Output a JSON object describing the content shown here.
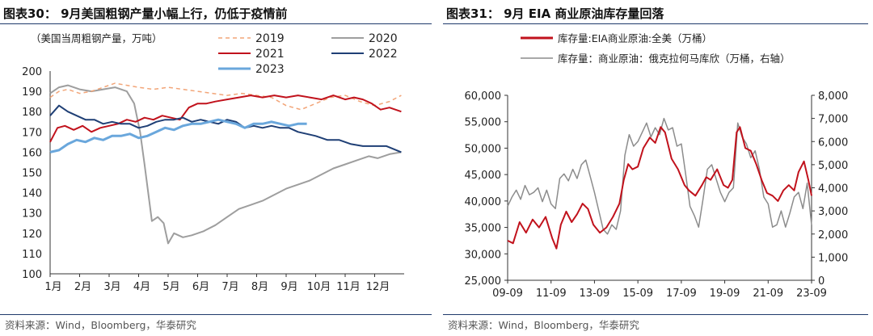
{
  "left": {
    "title": "图表30： 9月美国粗钢产量小幅上行，仍低于疫情前",
    "source": "资料来源：Wind，Bloomberg，华泰研究",
    "chart_data": {
      "type": "line",
      "title": "9月美国粗钢产量小幅上行，仍低于疫情前",
      "ylabel": "（美国当周粗钢产量，万吨）",
      "ylim": [
        100,
        200
      ],
      "yticks": [
        100,
        110,
        120,
        130,
        140,
        150,
        160,
        170,
        180,
        190,
        200
      ],
      "xlim": [
        1,
        13
      ],
      "categories": [
        "1月",
        "2月",
        "3月",
        "4月",
        "5月",
        "6月",
        "7月",
        "8月",
        "9月",
        "10月",
        "11月",
        "12月"
      ],
      "series": [
        {
          "name": "2019",
          "color": "#f2a578",
          "dash": "5,4",
          "width": 1.5,
          "x": [
            1,
            1.3,
            1.6,
            2,
            2.4,
            2.8,
            3.2,
            3.6,
            4,
            4.5,
            5,
            5.5,
            6,
            6.5,
            7,
            7.5,
            8,
            8.5,
            9,
            9.5,
            10,
            10.5,
            11,
            11.5,
            12,
            12.5,
            12.9
          ],
          "y": [
            187,
            190,
            191,
            189,
            190,
            192,
            194,
            193,
            192,
            191,
            192,
            191,
            190,
            189,
            188,
            189,
            188,
            187,
            183,
            181,
            184,
            187,
            188,
            185,
            183,
            185,
            188
          ]
        },
        {
          "name": "2020",
          "color": "#9e9e9e",
          "dash": "",
          "width": 2,
          "x": [
            1,
            1.3,
            1.6,
            2,
            2.4,
            2.8,
            3.2,
            3.6,
            3.85,
            4.05,
            4.2,
            4.45,
            4.65,
            4.85,
            5,
            5.2,
            5.5,
            5.8,
            6.2,
            6.6,
            7,
            7.4,
            7.8,
            8.2,
            8.6,
            9,
            9.4,
            9.8,
            10.2,
            10.6,
            11,
            11.4,
            11.8,
            12.1,
            12.5,
            12.9
          ],
          "y": [
            189,
            192,
            193,
            191,
            190,
            191,
            192,
            190,
            184,
            170,
            154,
            126,
            128,
            125,
            115,
            120,
            118,
            119,
            121,
            124,
            128,
            132,
            134,
            136,
            139,
            142,
            144,
            146,
            149,
            152,
            154,
            156,
            158,
            157,
            159,
            160
          ]
        },
        {
          "name": "2021",
          "color": "#c1121c",
          "dash": "",
          "width": 2,
          "x": [
            1,
            1.25,
            1.5,
            1.8,
            2.1,
            2.4,
            2.7,
            3,
            3.3,
            3.6,
            3.9,
            4.2,
            4.5,
            4.8,
            5.1,
            5.4,
            5.7,
            6,
            6.3,
            6.6,
            7,
            7.4,
            7.8,
            8.2,
            8.6,
            9,
            9.4,
            9.8,
            10.2,
            10.6,
            11,
            11.3,
            11.6,
            11.9,
            12.2,
            12.5,
            12.9
          ],
          "y": [
            165,
            172,
            173,
            171,
            173,
            170,
            172,
            173,
            174,
            176,
            175,
            177,
            176,
            178,
            177,
            176,
            182,
            184,
            184,
            185,
            186,
            187,
            188,
            187,
            188,
            187,
            188,
            187,
            186,
            188,
            186,
            187,
            186,
            184,
            181,
            182,
            180
          ]
        },
        {
          "name": "2022",
          "color": "#1f3f75",
          "dash": "",
          "width": 2,
          "x": [
            1,
            1.3,
            1.6,
            1.9,
            2.2,
            2.5,
            2.8,
            3.1,
            3.4,
            3.7,
            4,
            4.3,
            4.6,
            4.9,
            5.2,
            5.5,
            5.8,
            6.1,
            6.4,
            6.7,
            7,
            7.3,
            7.6,
            7.9,
            8.2,
            8.5,
            8.8,
            9.1,
            9.4,
            9.7,
            10,
            10.4,
            10.8,
            11.2,
            11.6,
            12,
            12.4,
            12.9
          ],
          "y": [
            178,
            183,
            180,
            178,
            176,
            176,
            174,
            175,
            174,
            174,
            172,
            173,
            175,
            176,
            176,
            177,
            175,
            176,
            175,
            174,
            176,
            175,
            172,
            173,
            172,
            173,
            172,
            172,
            170,
            169,
            168,
            166,
            166,
            164,
            163,
            163,
            163,
            160
          ]
        },
        {
          "name": "2023",
          "color": "#6aa7dc",
          "dash": "",
          "width": 3,
          "x": [
            1,
            1.3,
            1.6,
            1.9,
            2.2,
            2.5,
            2.8,
            3.1,
            3.4,
            3.7,
            4,
            4.3,
            4.6,
            4.9,
            5.2,
            5.5,
            5.8,
            6.1,
            6.4,
            6.7,
            7,
            7.3,
            7.6,
            7.9,
            8.2,
            8.5,
            8.8,
            9.1,
            9.4,
            9.7
          ],
          "y": [
            160,
            161,
            164,
            166,
            165,
            167,
            166,
            168,
            168,
            169,
            167,
            168,
            170,
            172,
            171,
            173,
            174,
            174,
            175,
            176,
            175,
            174,
            172,
            174,
            174,
            175,
            174,
            173,
            174,
            174
          ]
        }
      ]
    }
  },
  "right": {
    "title": "图表31： 9月 EIA 商业原油库存量回落",
    "source": "资料来源：Wind，Bloomberg，华泰研究",
    "chart_data": {
      "type": "line",
      "title": "9月 EIA 商业原油库存量回落",
      "ylim": [
        25000,
        60000
      ],
      "yticks": [
        "25,000",
        "30,000",
        "35,000",
        "40,000",
        "45,000",
        "50,000",
        "55,000",
        "60,000"
      ],
      "y2lim": [
        0,
        8000
      ],
      "y2ticks": [
        "0",
        "1,000",
        "2,000",
        "3,000",
        "4,000",
        "5,000",
        "6,000",
        "7,000",
        "8,000"
      ],
      "xlim": [
        2009.75,
        2023.75
      ],
      "xticks": [
        "09-09",
        "11-09",
        "13-09",
        "15-09",
        "17-09",
        "19-09",
        "21-09",
        "23-09"
      ],
      "series": [
        {
          "name": "库存量:EIA商业原油:全美（万桶）",
          "axis": "left",
          "color": "#c1121c",
          "width": 2,
          "x": [
            2009.75,
            2010.0,
            2010.3,
            2010.6,
            2010.9,
            2011.2,
            2011.5,
            2011.8,
            2012.0,
            2012.2,
            2012.45,
            2012.7,
            2012.95,
            2013.2,
            2013.45,
            2013.7,
            2014.0,
            2014.3,
            2014.6,
            2014.9,
            2015.1,
            2015.3,
            2015.5,
            2015.75,
            2016.0,
            2016.3,
            2016.55,
            2016.8,
            2017.0,
            2017.3,
            2017.6,
            2017.9,
            2018.1,
            2018.4,
            2018.7,
            2018.9,
            2019.1,
            2019.4,
            2019.7,
            2019.9,
            2020.1,
            2020.3,
            2020.45,
            2020.7,
            2020.95,
            2021.2,
            2021.45,
            2021.7,
            2021.95,
            2022.2,
            2022.45,
            2022.7,
            2022.95,
            2023.15,
            2023.4,
            2023.6,
            2023.75
          ],
          "y": [
            32500,
            32000,
            36000,
            34000,
            36500,
            35000,
            37000,
            33000,
            31000,
            35500,
            38000,
            36000,
            37500,
            39500,
            38500,
            35500,
            34000,
            35000,
            37000,
            39500,
            44000,
            47000,
            46000,
            46500,
            50000,
            52000,
            51000,
            54000,
            53000,
            48000,
            46000,
            43000,
            42000,
            41000,
            43000,
            44500,
            44000,
            46000,
            43000,
            42500,
            44000,
            53000,
            54000,
            50000,
            49500,
            47000,
            44000,
            41500,
            41000,
            40000,
            42000,
            43000,
            42000,
            45500,
            47500,
            44000,
            41000
          ]
        },
        {
          "name": "库存量：商业原油：俄克拉何马库欣（万桶，右轴）",
          "axis": "right",
          "color": "#8c8c8c",
          "width": 1.5,
          "x": [
            2009.75,
            2009.95,
            2010.15,
            2010.35,
            2010.55,
            2010.75,
            2010.95,
            2011.15,
            2011.35,
            2011.55,
            2011.75,
            2011.95,
            2012.15,
            2012.35,
            2012.55,
            2012.75,
            2012.95,
            2013.15,
            2013.35,
            2013.55,
            2013.75,
            2013.95,
            2014.15,
            2014.35,
            2014.55,
            2014.75,
            2014.95,
            2015.15,
            2015.35,
            2015.55,
            2015.75,
            2015.95,
            2016.15,
            2016.35,
            2016.55,
            2016.75,
            2016.95,
            2017.15,
            2017.35,
            2017.55,
            2017.75,
            2017.95,
            2018.15,
            2018.35,
            2018.55,
            2018.75,
            2018.95,
            2019.15,
            2019.35,
            2019.55,
            2019.75,
            2019.95,
            2020.15,
            2020.35,
            2020.55,
            2020.75,
            2020.95,
            2021.15,
            2021.35,
            2021.55,
            2021.75,
            2021.95,
            2022.15,
            2022.35,
            2022.55,
            2022.75,
            2022.95,
            2023.15,
            2023.35,
            2023.55,
            2023.75
          ],
          "y": [
            3200,
            3600,
            3900,
            3500,
            4100,
            3700,
            3800,
            4000,
            3400,
            3900,
            3300,
            3100,
            4400,
            4600,
            4300,
            4800,
            4400,
            5000,
            5200,
            4500,
            3800,
            3000,
            2200,
            2000,
            2400,
            2200,
            3000,
            5400,
            6300,
            5800,
            6000,
            6400,
            6800,
            6200,
            6600,
            6300,
            7000,
            6500,
            6600,
            5800,
            5900,
            4600,
            3200,
            2800,
            2300,
            3500,
            4800,
            5000,
            4400,
            3800,
            3400,
            3800,
            4000,
            6800,
            6200,
            5900,
            5300,
            5600,
            4800,
            3600,
            3300,
            2300,
            2400,
            3000,
            2300,
            2900,
            3600,
            3800,
            3100,
            4200,
            2400
          ]
        }
      ]
    }
  }
}
